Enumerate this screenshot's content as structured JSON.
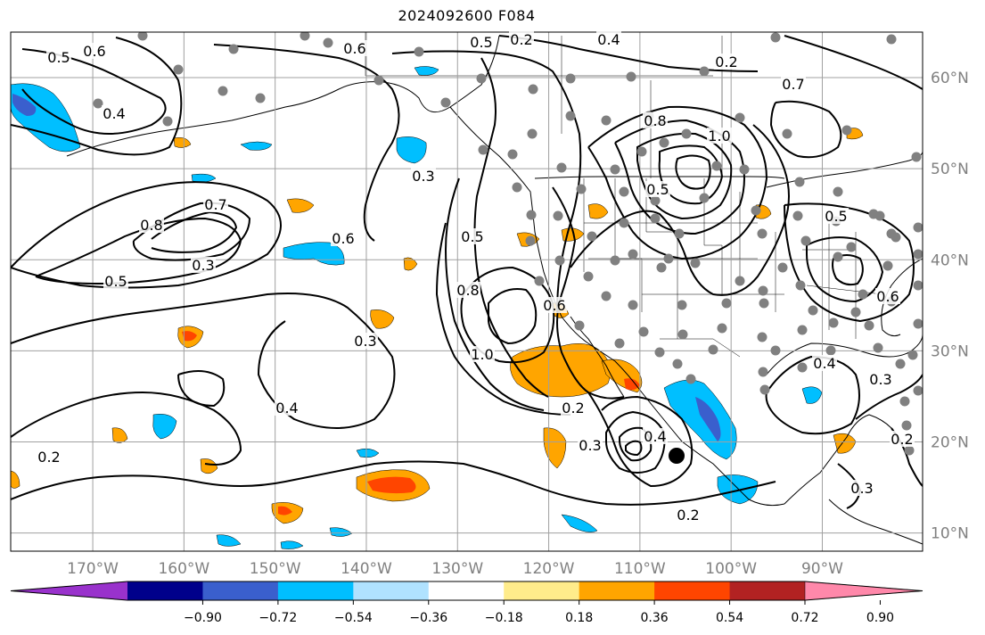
{
  "title": "2024092600 F084",
  "map": {
    "lat_labels": [
      "60°N",
      "50°N",
      "40°N",
      "30°N",
      "20°N",
      "10°N"
    ],
    "lat_values": [
      60,
      50,
      40,
      30,
      20,
      10
    ],
    "lon_labels": [
      "170°W",
      "160°W",
      "150°W",
      "140°W",
      "130°W",
      "120°W",
      "110°W",
      "100°W",
      "90°W"
    ],
    "lon_values": [
      -170,
      -160,
      -150,
      -140,
      -130,
      -120,
      -110,
      -100,
      -90
    ],
    "extent": {
      "lon_min": -179,
      "lon_max": -79,
      "lat_min": 8,
      "lat_max": 65
    },
    "contour_labels": [
      "0.5",
      "0.6",
      "0.4",
      "0.3",
      "0.2",
      "0.6",
      "0.5",
      "0.4",
      "0.2",
      "0.7",
      "0.8",
      "0.7",
      "0.8",
      "0.5",
      "0.6",
      "0.5",
      "0.3",
      "0.4",
      "0.3",
      "0.5",
      "0.8",
      "1.0",
      "0.6",
      "0.2",
      "0.3",
      "0.4",
      "0.2",
      "0.4",
      "0.3",
      "0.2",
      "1.0",
      "0.5",
      "0.6",
      "0.3",
      "0.2"
    ],
    "colors": {
      "contour": "#000000",
      "grid": "#a0a0a0",
      "station": "#808080",
      "marker": "#000000"
    }
  },
  "colorbar": {
    "ticks": [
      "−0.90",
      "−0.72",
      "−0.54",
      "−0.36",
      "−0.18",
      "0.18",
      "0.36",
      "0.54",
      "0.72",
      "0.90"
    ],
    "colors": [
      "#9932cc",
      "#00008b",
      "#3a5fcd",
      "#00bfff",
      "#b0e2ff",
      "#ffffff",
      "#ffec8b",
      "#ffa500",
      "#ff4500",
      "#b22222",
      "#ff88aa"
    ]
  }
}
